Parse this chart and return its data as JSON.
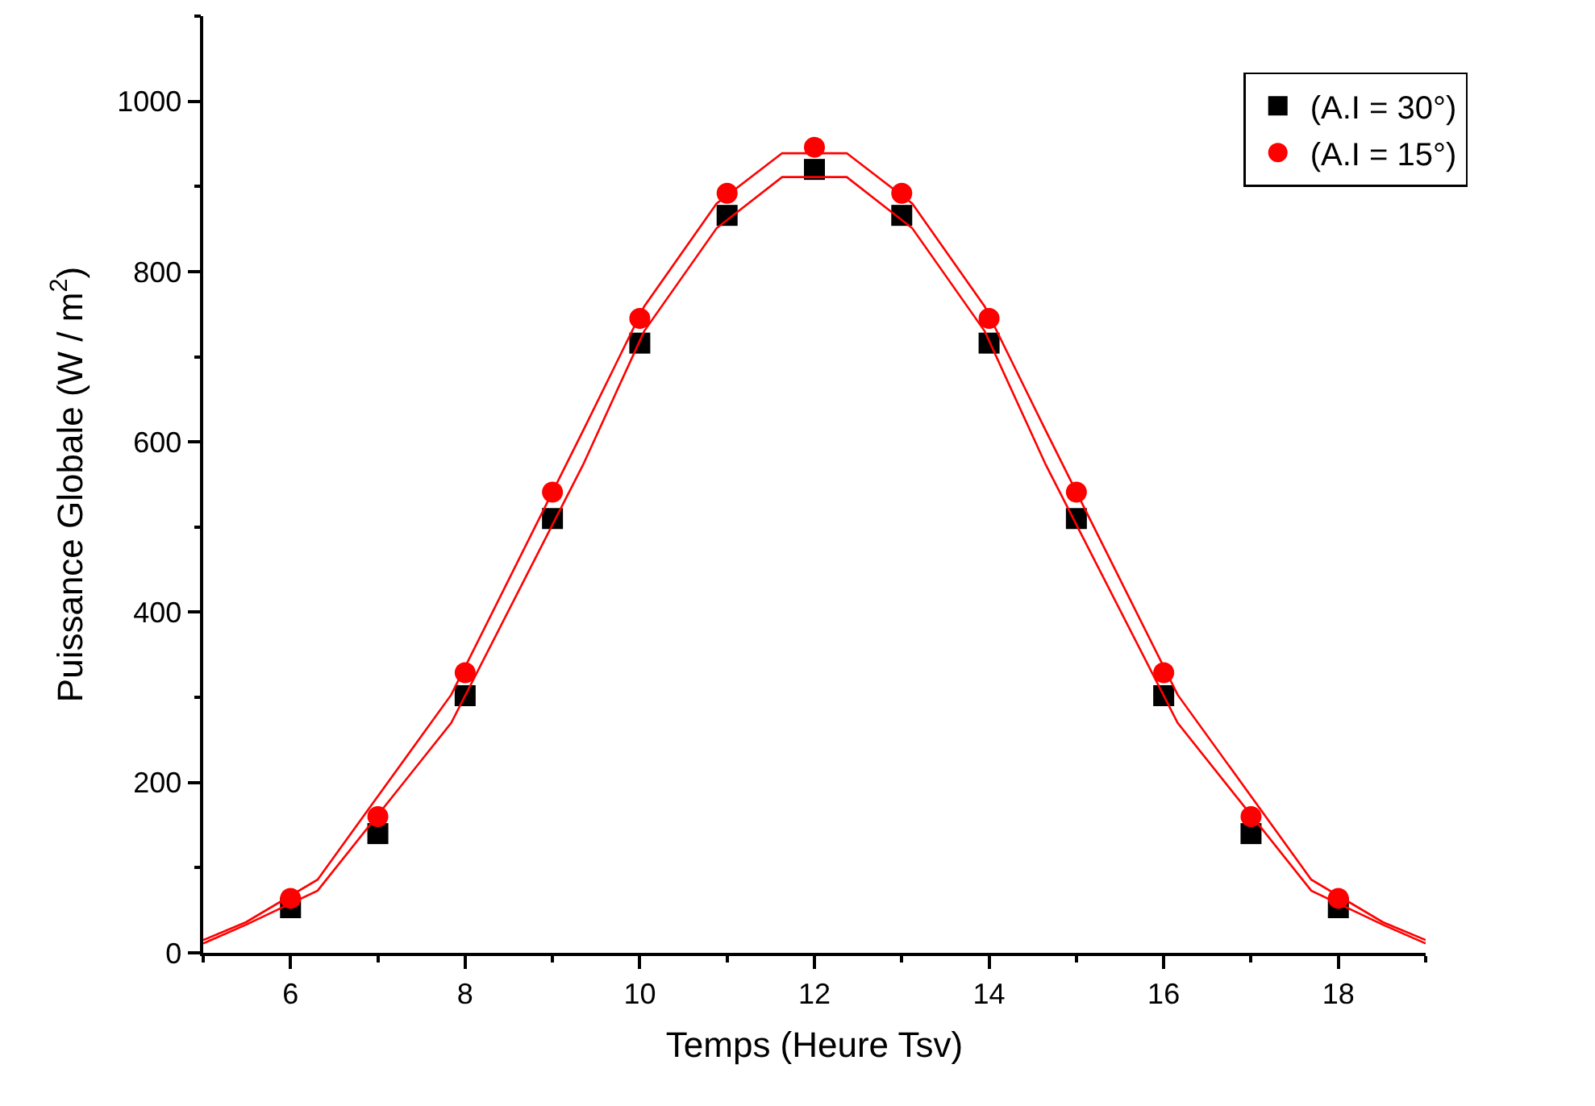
{
  "chart_data": {
    "type": "scatter",
    "xlabel": "Temps (Heure Tsv)",
    "ylabel": "Puissance Globale (W / m$^{2}$)",
    "x": [
      6,
      7,
      8,
      9,
      10,
      11,
      12,
      13,
      14,
      15,
      16,
      17,
      18
    ],
    "series": [
      {
        "name": "(A.I = 30°)",
        "color": "#000000",
        "marker": "square",
        "values": [
          53,
          140,
          302,
          510,
          716,
          866,
          920,
          866,
          716,
          510,
          302,
          140,
          53
        ]
      },
      {
        "name": "(A.I = 15°)",
        "color": "#ff0000",
        "marker": "circle",
        "values": [
          64,
          160,
          329,
          541,
          745,
          892,
          946,
          892,
          745,
          541,
          329,
          160,
          64
        ]
      },
      {
        "type": "line",
        "color": "#ff0000",
        "marker": "none",
        "x": [
          5,
          5.49,
          6.31,
          7.84,
          9.35,
          10.05,
          10.88,
          11.63,
          12.37,
          13.12,
          13.95,
          14.65,
          16.16,
          17.69,
          18.51,
          19
        ],
        "values": [
          11,
          33,
          73,
          270,
          573,
          730,
          851,
          911,
          911,
          851,
          730,
          573,
          270,
          73,
          33,
          11
        ]
      },
      {
        "type": "line",
        "color": "#ff0000",
        "marker": "none",
        "x": [
          5,
          5.49,
          6.31,
          7.84,
          9.35,
          10.05,
          10.88,
          11.63,
          12.37,
          13.12,
          13.95,
          14.65,
          16.16,
          17.69,
          18.51,
          19
        ],
        "values": [
          15,
          36,
          86,
          303,
          613,
          759,
          880,
          939,
          939,
          880,
          759,
          613,
          303,
          86,
          36,
          15
        ]
      }
    ],
    "xlim": [
      5,
      19
    ],
    "xticks": [
      6,
      8,
      10,
      12,
      14,
      16,
      18
    ],
    "ylim": [
      0,
      1100
    ],
    "yticks": [
      0,
      200,
      400,
      600,
      800,
      1000
    ],
    "legend": "top right"
  }
}
